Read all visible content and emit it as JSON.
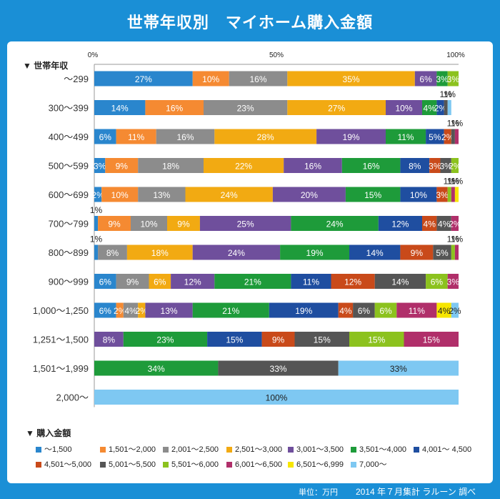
{
  "title": "世帯年収別　マイホーム購入金額",
  "y_header": "▼ 世帯年収",
  "legend_header": "▼ 購入金額",
  "footer": {
    "unit": "単位：万円",
    "note": "2014 年７月集計  ラルーン 調べ"
  },
  "chart_data": {
    "type": "bar",
    "stacked": true,
    "orientation": "horizontal",
    "x_ticks": [
      "0%",
      "50%",
      "100%"
    ],
    "xlim": [
      0,
      100
    ],
    "categories": [
      "～299",
      "300～399",
      "400～499",
      "500～599",
      "600～699",
      "700～799",
      "800～899",
      "900～999",
      "1,000～1,250",
      "1,251～1,500",
      "1,501～1,999",
      "2,000～"
    ],
    "series": [
      {
        "name": "～1,500",
        "color": "#2a86cd",
        "values": [
          27,
          14,
          6,
          3,
          2,
          1,
          1,
          6,
          6,
          0,
          0,
          0
        ]
      },
      {
        "name": "1,501～2,000",
        "color": "#f58a32",
        "values": [
          10,
          16,
          11,
          9,
          10,
          9,
          0,
          0,
          2,
          0,
          0,
          0
        ]
      },
      {
        "name": "2,001～2,500",
        "color": "#8c8c8c",
        "values": [
          16,
          23,
          16,
          18,
          13,
          10,
          8,
          9,
          4,
          0,
          0,
          0
        ]
      },
      {
        "name": "2,501～3,000",
        "color": "#f2aa12",
        "values": [
          35,
          27,
          28,
          22,
          24,
          9,
          18,
          6,
          2,
          0,
          0,
          0
        ]
      },
      {
        "name": "3,001～3,500",
        "color": "#6f4f9c",
        "values": [
          6,
          10,
          19,
          16,
          20,
          25,
          24,
          12,
          13,
          8,
          0,
          0
        ]
      },
      {
        "name": "3,501～4,000",
        "color": "#1e9b3a",
        "values": [
          3,
          4,
          11,
          16,
          15,
          24,
          19,
          21,
          21,
          23,
          34,
          0
        ]
      },
      {
        "name": "4,001～ 4,500",
        "color": "#1f4ea0",
        "values": [
          0,
          2,
          5,
          8,
          10,
          12,
          14,
          11,
          19,
          15,
          0,
          0
        ]
      },
      {
        "name": "4,501～5,000",
        "color": "#c94a1a",
        "values": [
          0,
          0,
          2,
          3,
          3,
          4,
          9,
          12,
          4,
          9,
          0,
          0
        ]
      },
      {
        "name": "5,001～5,500",
        "color": "#555555",
        "values": [
          0,
          1,
          1,
          3,
          0,
          4,
          5,
          14,
          6,
          15,
          33,
          0
        ]
      },
      {
        "name": "5,501～6,000",
        "color": "#8cc21e",
        "values": [
          3,
          0,
          0,
          2,
          1,
          0,
          1,
          6,
          6,
          15,
          0,
          0
        ]
      },
      {
        "name": "6,001～6,500",
        "color": "#b02f6a",
        "values": [
          0,
          0,
          1,
          0,
          1,
          2,
          1,
          3,
          11,
          15,
          0,
          0
        ]
      },
      {
        "name": "6,501～6,999",
        "color": "#f7e600",
        "values": [
          0,
          0,
          0,
          0,
          1,
          0,
          0,
          0,
          4,
          0,
          0,
          0
        ]
      },
      {
        "name": "7,000～",
        "color": "#7ec8f2",
        "values": [
          0,
          1,
          0,
          0,
          0,
          0,
          0,
          0,
          2,
          0,
          33,
          100
        ]
      }
    ]
  }
}
